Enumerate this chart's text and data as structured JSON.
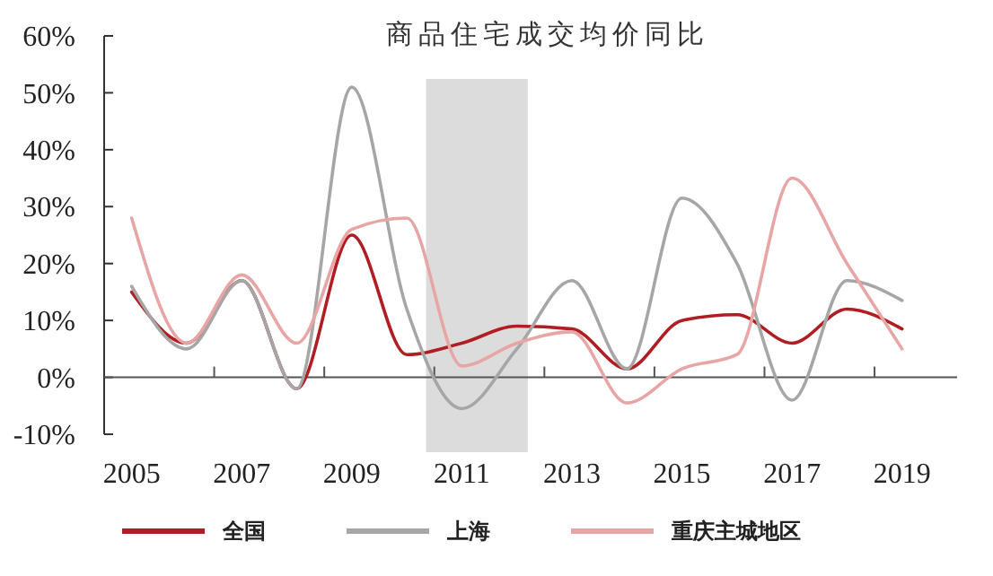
{
  "chart_data": {
    "type": "line",
    "title": "商品住宅成交均价同比",
    "x": [
      2005,
      2006,
      2007,
      2008,
      2009,
      2010,
      2011,
      2012,
      2013,
      2014,
      2015,
      2016,
      2017,
      2018,
      2019
    ],
    "series": [
      {
        "name": "全国",
        "color": "#b01e23",
        "values": [
          15,
          6,
          17,
          -2,
          25,
          4,
          6,
          9,
          8.5,
          1.5,
          10,
          11,
          6,
          12,
          8.5
        ]
      },
      {
        "name": "上海",
        "color": "#a6a6a6",
        "values": [
          16,
          5,
          17,
          -2,
          51,
          12,
          -5.5,
          5,
          17,
          1.5,
          31.5,
          20,
          -4,
          17,
          13.5
        ]
      },
      {
        "name": "重庆主城地区",
        "color": "#e8a5a5",
        "values": [
          28,
          6,
          18,
          6,
          26,
          28,
          2,
          6,
          8,
          -4.5,
          1.5,
          4,
          35,
          20,
          5
        ]
      }
    ],
    "xlim": [
      2004.5,
      2020
    ],
    "xticks": [
      {
        "value": 2005,
        "label": "2005"
      },
      {
        "value": 2007,
        "label": "2007"
      },
      {
        "value": 2009,
        "label": "2009"
      },
      {
        "value": 2011,
        "label": "2011"
      },
      {
        "value": 2013,
        "label": "2013"
      },
      {
        "value": 2015,
        "label": "2015"
      },
      {
        "value": 2017,
        "label": "2017"
      },
      {
        "value": 2019,
        "label": "2019"
      },
      {
        "value": 2006.5,
        "label": null
      },
      {
        "value": 2008.5,
        "label": null
      },
      {
        "value": 2010.5,
        "label": null
      },
      {
        "value": 2012.5,
        "label": null
      },
      {
        "value": 2014.5,
        "label": null
      },
      {
        "value": 2016.5,
        "label": null
      },
      {
        "value": 2018.5,
        "label": null
      }
    ],
    "ylim": [
      -10,
      60
    ],
    "yticks": [
      {
        "value": -10,
        "label": "-10%"
      },
      {
        "value": 0,
        "label": "0%"
      },
      {
        "value": 10,
        "label": "10%"
      },
      {
        "value": 20,
        "label": "20%"
      },
      {
        "value": 30,
        "label": "30%"
      },
      {
        "value": 40,
        "label": "40%"
      },
      {
        "value": 50,
        "label": "50%"
      },
      {
        "value": 60,
        "label": "60%"
      }
    ],
    "bands": [
      {
        "axis": "x",
        "from": 2010.35,
        "to": 2012.2,
        "color": "#dcdcdc"
      }
    ],
    "legend": "bottom",
    "line_style": "solid",
    "marker": "none"
  }
}
